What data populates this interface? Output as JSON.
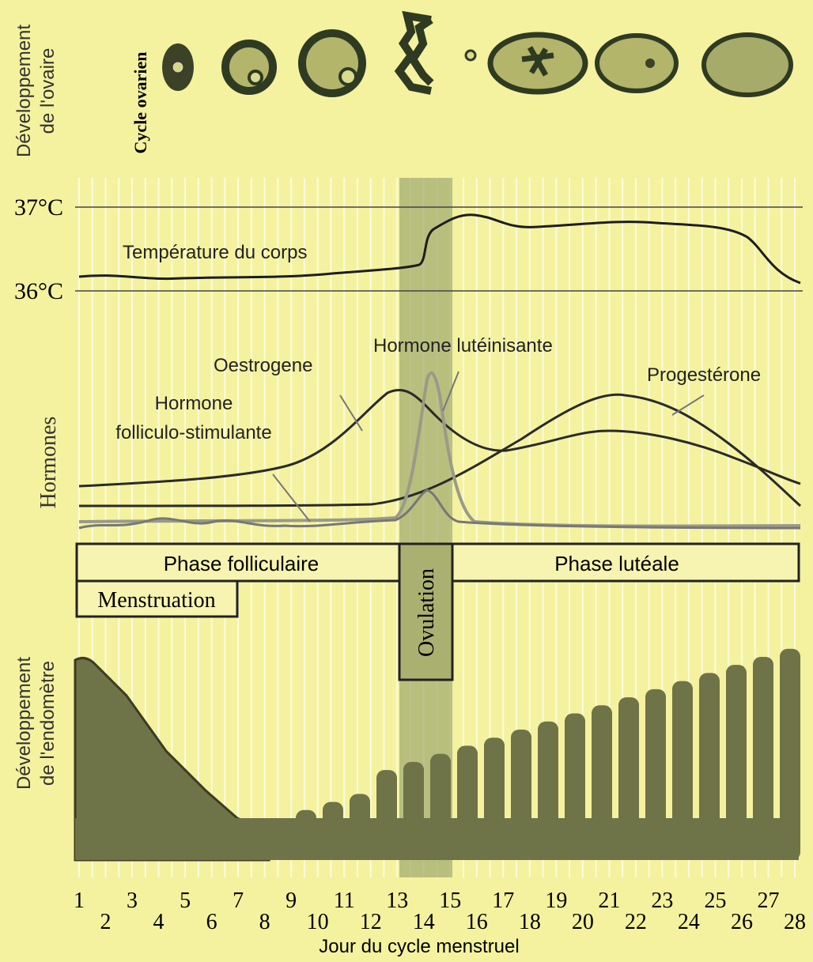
{
  "ovary": {
    "label_lines": [
      "Développement",
      "de l'ovaire"
    ],
    "title": "Cycle ovarien"
  },
  "temperature": {
    "high": "37°C",
    "low": "36°C",
    "label": "Température du corps"
  },
  "hormones": {
    "label": "Hormones",
    "oestrogen": "Oestrogene",
    "lh": "Hormone lutéinisante",
    "progesterone": "Progestérone",
    "fsh_lines": [
      "Hormone",
      "folliculo-stimulante"
    ]
  },
  "phases": {
    "follicular": "Phase folliculaire",
    "luteal": "Phase lutéale",
    "menstruation": "Menstruation",
    "ovulation": "Ovulation"
  },
  "endometrium": {
    "label_lines": [
      "Développement",
      "de l'endomètre"
    ]
  },
  "x_axis": {
    "days": [
      "1",
      "2",
      "3",
      "4",
      "5",
      "6",
      "7",
      "8",
      "9",
      "10",
      "11",
      "12",
      "13",
      "14",
      "15",
      "16",
      "17",
      "18",
      "19",
      "20",
      "21",
      "22",
      "23",
      "24",
      "25",
      "26",
      "27",
      "28"
    ],
    "title": "Jour du cycle menstruel"
  }
}
